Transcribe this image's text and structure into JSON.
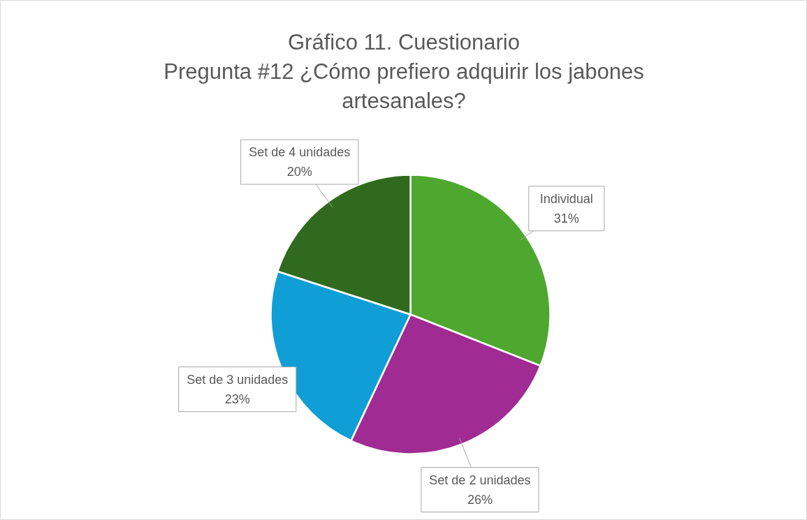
{
  "chart_data": {
    "type": "pie",
    "title": "Gráfico 11. Cuestionario",
    "subtitle": "Pregunta #12 ¿Cómo prefiero adquirir los jabones artesanales?",
    "categories": [
      "Individual",
      "Set de 2 unidades",
      "Set de 3 unidades",
      "Set de 4 unidades"
    ],
    "values": [
      31,
      26,
      23,
      20
    ],
    "value_labels": [
      "31%",
      "26%",
      "23%",
      "20%"
    ],
    "colors": [
      "#4ea72e",
      "#a02b93",
      "#0f9ed5",
      "#306a1e"
    ]
  }
}
